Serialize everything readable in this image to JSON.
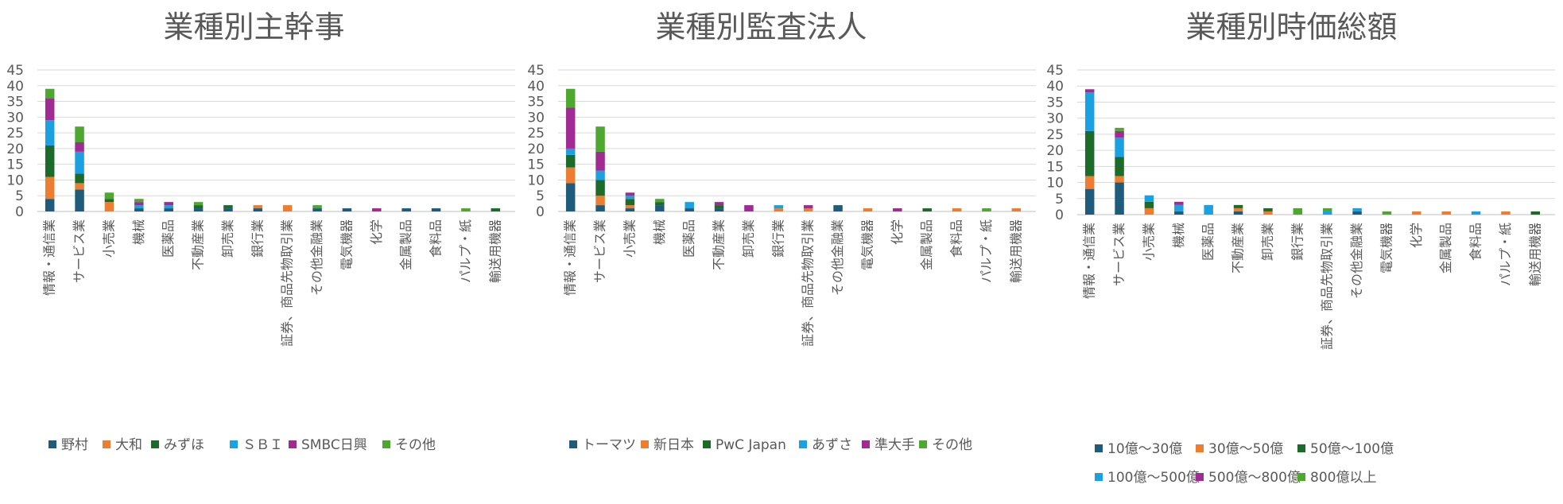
{
  "colors": [
    "#1f5c7c",
    "#ed7d31",
    "#1d6b2a",
    "#1ba1e2",
    "#a02b93",
    "#4ea72e"
  ],
  "chart_data": [
    {
      "type": "bar",
      "stacked": true,
      "title": "業種別主幹事",
      "ylim": [
        0,
        45
      ],
      "yticks": [
        0,
        5,
        10,
        15,
        20,
        25,
        30,
        35,
        40,
        45
      ],
      "grid": true,
      "legend_position": "bottom",
      "categories": [
        "情報・通信業",
        "サービス業",
        "小売業",
        "機械",
        "医薬品",
        "不動産業",
        "卸売業",
        "銀行業",
        "証券、商品先物取引業",
        "その他金融業",
        "電気機器",
        "化学",
        "金属製品",
        "食料品",
        "パルプ・紙",
        "輸送用機器"
      ],
      "series": [
        {
          "name": "野村",
          "values": [
            4,
            7,
            0,
            1,
            1,
            1,
            1,
            1,
            0,
            1,
            1,
            0,
            1,
            1,
            0,
            0
          ]
        },
        {
          "name": "大和",
          "values": [
            7,
            2,
            3,
            0,
            0,
            0,
            0,
            1,
            2,
            0,
            0,
            0,
            0,
            0,
            0,
            0
          ]
        },
        {
          "name": "みずほ",
          "values": [
            10,
            3,
            1,
            0,
            0,
            1,
            1,
            0,
            0,
            0,
            0,
            0,
            0,
            0,
            0,
            1
          ]
        },
        {
          "name": "ＳＢＩ",
          "values": [
            8,
            7,
            0,
            1,
            1,
            0,
            0,
            0,
            0,
            0,
            0,
            0,
            0,
            0,
            0,
            0
          ]
        },
        {
          "name": "SMBC日興",
          "values": [
            7,
            3,
            0,
            1,
            1,
            0,
            0,
            0,
            0,
            0,
            0,
            1,
            0,
            0,
            0,
            0
          ]
        },
        {
          "name": "その他",
          "values": [
            3,
            5,
            2,
            1,
            0,
            1,
            0,
            0,
            0,
            1,
            0,
            0,
            0,
            0,
            1,
            0
          ]
        }
      ]
    },
    {
      "type": "bar",
      "stacked": true,
      "title": "業種別監査法人",
      "ylim": [
        0,
        45
      ],
      "yticks": [
        0,
        5,
        10,
        15,
        20,
        25,
        30,
        35,
        40,
        45
      ],
      "grid": true,
      "legend_position": "bottom",
      "categories": [
        "情報・通信業",
        "サービス業",
        "小売業",
        "機械",
        "医薬品",
        "不動産業",
        "卸売業",
        "銀行業",
        "証券、商品先物取引業",
        "その他金融業",
        "電気機器",
        "化学",
        "金属製品",
        "食料品",
        "パルプ・紙",
        "輸送用機器"
      ],
      "series": [
        {
          "name": "トーマツ",
          "values": [
            9,
            2,
            1,
            2,
            1,
            1,
            0,
            0,
            0,
            2,
            0,
            0,
            0,
            0,
            0,
            0
          ]
        },
        {
          "name": "新日本",
          "values": [
            5,
            3,
            1,
            0,
            0,
            0,
            0,
            1,
            1,
            0,
            1,
            0,
            0,
            1,
            0,
            1
          ]
        },
        {
          "name": "PwC Japan",
          "values": [
            4,
            5,
            2,
            1,
            0,
            1,
            0,
            0,
            0,
            0,
            0,
            0,
            1,
            0,
            0,
            0
          ]
        },
        {
          "name": "あずさ",
          "values": [
            2,
            3,
            1,
            0,
            2,
            0,
            0,
            1,
            0,
            0,
            0,
            0,
            0,
            0,
            0,
            0
          ]
        },
        {
          "name": "準大手",
          "values": [
            13,
            6,
            1,
            0,
            0,
            1,
            2,
            0,
            1,
            0,
            0,
            1,
            0,
            0,
            0,
            0
          ]
        },
        {
          "name": "その他",
          "values": [
            6,
            8,
            0,
            1,
            0,
            0,
            0,
            0,
            0,
            0,
            0,
            0,
            0,
            0,
            1,
            0
          ]
        }
      ]
    },
    {
      "type": "bar",
      "stacked": true,
      "title": "業種別時価総額",
      "ylim": [
        0,
        45
      ],
      "yticks": [
        0,
        5,
        10,
        15,
        20,
        25,
        30,
        35,
        40,
        45
      ],
      "grid": true,
      "legend_position": "bottom",
      "categories": [
        "情報・通信業",
        "サービス業",
        "小売業",
        "機械",
        "医薬品",
        "不動産業",
        "卸売業",
        "銀行業",
        "証券、商品先物取引業",
        "その他金融業",
        "電気機器",
        "化学",
        "金属製品",
        "食料品",
        "パルプ・紙",
        "輸送用機器"
      ],
      "series": [
        {
          "name": "10億～30億",
          "values": [
            8,
            10,
            0,
            1,
            0,
            1,
            0,
            0,
            0,
            1,
            0,
            0,
            0,
            0,
            0,
            0
          ]
        },
        {
          "name": "30億～50億",
          "values": [
            4,
            2,
            2,
            0,
            0,
            1,
            1,
            0,
            0,
            0,
            0,
            1,
            1,
            0,
            1,
            0
          ]
        },
        {
          "name": "50億～100億",
          "values": [
            14,
            6,
            2,
            0,
            0,
            1,
            1,
            0,
            0,
            0,
            0,
            0,
            0,
            0,
            0,
            1
          ]
        },
        {
          "name": "100億～500億",
          "values": [
            12,
            6,
            2,
            2,
            3,
            0,
            0,
            0,
            1,
            1,
            0,
            0,
            0,
            1,
            0,
            0
          ]
        },
        {
          "name": "500億～800億",
          "values": [
            1,
            2,
            0,
            1,
            0,
            0,
            0,
            0,
            0,
            0,
            0,
            0,
            0,
            0,
            0,
            0
          ]
        },
        {
          "name": "800億以上",
          "values": [
            0,
            1,
            0,
            0,
            0,
            0,
            0,
            2,
            1,
            0,
            1,
            0,
            0,
            0,
            0,
            0
          ]
        }
      ]
    }
  ]
}
